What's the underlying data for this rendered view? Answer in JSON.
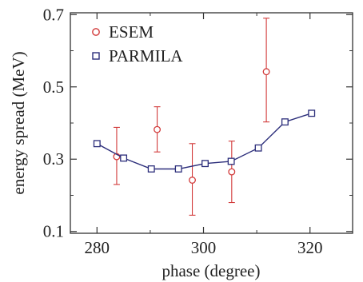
{
  "chart_data": {
    "type": "scatter",
    "xlabel": "phase (degree)",
    "ylabel": "energy spread (MeV)",
    "xlim": [
      275,
      328
    ],
    "ylim": [
      0.095,
      0.705
    ],
    "xticks": [
      280,
      300,
      320
    ],
    "xticks_minor": [
      290,
      310
    ],
    "xtick_labels": [
      "280",
      "300",
      "320"
    ],
    "yticks": [
      0.1,
      0.3,
      0.5,
      0.7
    ],
    "yticks_minor": [
      0.2,
      0.4,
      0.6
    ],
    "ytick_labels": [
      "0.1",
      "0.3",
      "0.5",
      "0.7"
    ],
    "grid": false,
    "legend_position": "top-left",
    "series": [
      {
        "name": "ESEM",
        "marker": "circle",
        "line": false,
        "color": "#d23a3a",
        "x": [
          283.7,
          291.3,
          297.9,
          305.3,
          311.8
        ],
        "y": [
          0.307,
          0.382,
          0.242,
          0.265,
          0.542
        ],
        "err_low": [
          0.23,
          0.32,
          0.145,
          0.18,
          0.403
        ],
        "err_high": [
          0.388,
          0.445,
          0.343,
          0.35,
          0.69
        ]
      },
      {
        "name": "PARMILA",
        "marker": "square",
        "line": true,
        "color": "#2b2d7a",
        "x": [
          280,
          285,
          290.2,
          295.3,
          300.3,
          305.2,
          310.3,
          315.3,
          320.3
        ],
        "y": [
          0.343,
          0.303,
          0.273,
          0.273,
          0.288,
          0.294,
          0.331,
          0.403,
          0.427
        ]
      }
    ]
  }
}
